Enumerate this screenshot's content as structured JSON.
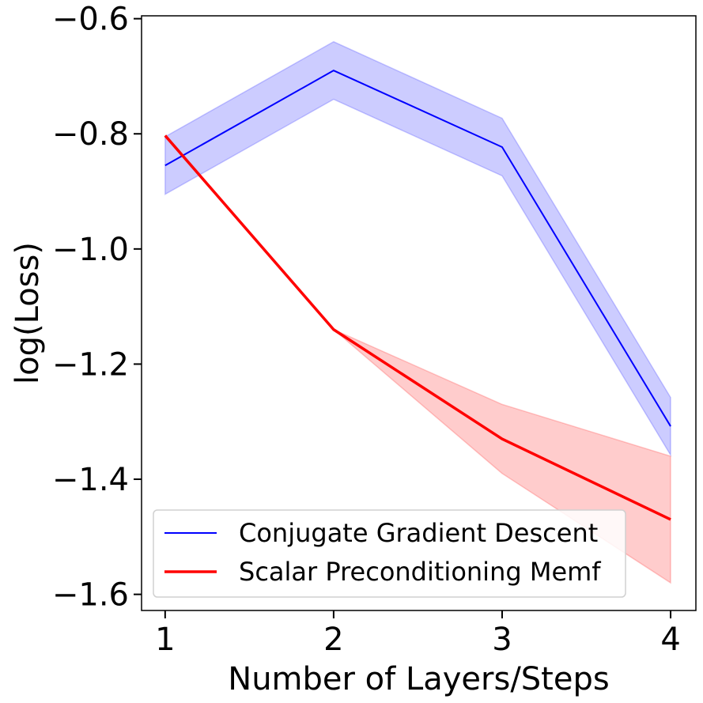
{
  "chart_data": {
    "type": "line",
    "xlabel": "Number of Layers/Steps",
    "ylabel": "log(Loss)",
    "x": [
      1,
      2,
      3,
      4
    ],
    "xlim": [
      0.86,
      4.15
    ],
    "ylim": [
      -1.628,
      -0.595
    ],
    "xticks": [
      1,
      2,
      3,
      4
    ],
    "xtick_labels": [
      "1",
      "2",
      "3",
      "4"
    ],
    "yticks": [
      -0.6,
      -0.8,
      -1.0,
      -1.2,
      -1.4,
      -1.6
    ],
    "ytick_labels": [
      "−0.6",
      "−0.8",
      "−1.0",
      "−1.2",
      "−1.4",
      "−1.6"
    ],
    "grid": false,
    "legend_position": "lower-left",
    "series": [
      {
        "name": "Conjugate Gradient Descent",
        "color": "#0000ff",
        "band_color": "#0000ff",
        "values": [
          -0.855,
          -0.69,
          -0.823,
          -1.308
        ],
        "lower": [
          -0.905,
          -0.74,
          -0.873,
          -1.358
        ],
        "upper": [
          -0.805,
          -0.64,
          -0.773,
          -1.258
        ]
      },
      {
        "name": "Scalar Preconditioning Memf",
        "color": "#ff0000",
        "band_color": "#ff0000",
        "values": [
          -0.803,
          -1.14,
          -1.33,
          -1.47
        ],
        "lower": [
          -0.803,
          -1.14,
          -1.39,
          -1.58
        ],
        "upper": [
          -0.803,
          -1.14,
          -1.27,
          -1.36
        ]
      }
    ]
  }
}
